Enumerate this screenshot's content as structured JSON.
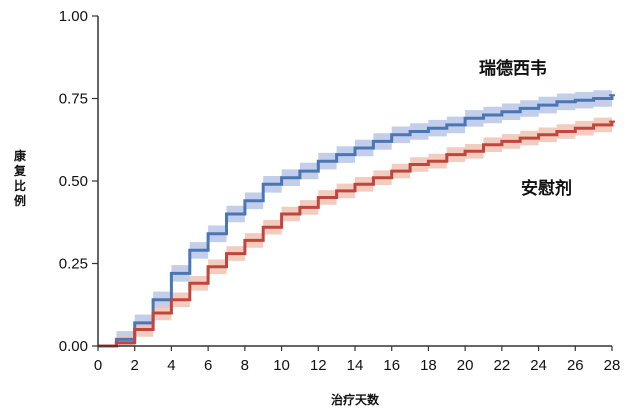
{
  "chart_data": {
    "type": "line",
    "step": true,
    "title": "",
    "xlabel": "治疗天数",
    "ylabel": "康复比例",
    "xlim": [
      0,
      28
    ],
    "ylim": [
      0,
      1
    ],
    "xticks": [
      "0",
      "2",
      "4",
      "6",
      "8",
      "10",
      "12",
      "14",
      "16",
      "18",
      "20",
      "22",
      "24",
      "26",
      "28"
    ],
    "xtick_values": [
      0,
      2,
      4,
      6,
      8,
      10,
      12,
      14,
      16,
      18,
      20,
      22,
      24,
      26,
      28
    ],
    "yticks": [
      "0.00",
      "0.25",
      "0.50",
      "0.75",
      "1.00"
    ],
    "ytick_values": [
      0,
      0.25,
      0.5,
      0.75,
      1.0
    ],
    "grid": false,
    "legend": "direct labels on curves",
    "series": [
      {
        "name": "瑞德西韦",
        "color": "#4a77b4",
        "band_color": "#b9c6e6",
        "x": [
          0,
          1,
          2,
          3,
          4,
          5,
          6,
          7,
          8,
          9,
          10,
          11,
          12,
          13,
          14,
          15,
          16,
          17,
          18,
          19,
          20,
          21,
          22,
          23,
          24,
          25,
          26,
          27,
          28
        ],
        "values": [
          0.0,
          0.02,
          0.07,
          0.14,
          0.22,
          0.29,
          0.34,
          0.4,
          0.44,
          0.49,
          0.51,
          0.53,
          0.56,
          0.58,
          0.6,
          0.62,
          0.64,
          0.65,
          0.66,
          0.67,
          0.69,
          0.7,
          0.71,
          0.72,
          0.73,
          0.74,
          0.745,
          0.75,
          0.76
        ],
        "band": 0.025
      },
      {
        "name": "安慰剂",
        "color": "#c0463d",
        "band_color": "#f0c3b3",
        "x": [
          0,
          1,
          2,
          3,
          4,
          5,
          6,
          7,
          8,
          9,
          10,
          11,
          12,
          13,
          14,
          15,
          16,
          17,
          18,
          19,
          20,
          21,
          22,
          23,
          24,
          25,
          26,
          27,
          28
        ],
        "values": [
          0.0,
          0.01,
          0.05,
          0.1,
          0.14,
          0.19,
          0.24,
          0.28,
          0.32,
          0.36,
          0.4,
          0.42,
          0.45,
          0.47,
          0.49,
          0.51,
          0.53,
          0.55,
          0.56,
          0.58,
          0.59,
          0.61,
          0.62,
          0.63,
          0.64,
          0.65,
          0.66,
          0.67,
          0.68
        ],
        "band": 0.022
      }
    ]
  }
}
